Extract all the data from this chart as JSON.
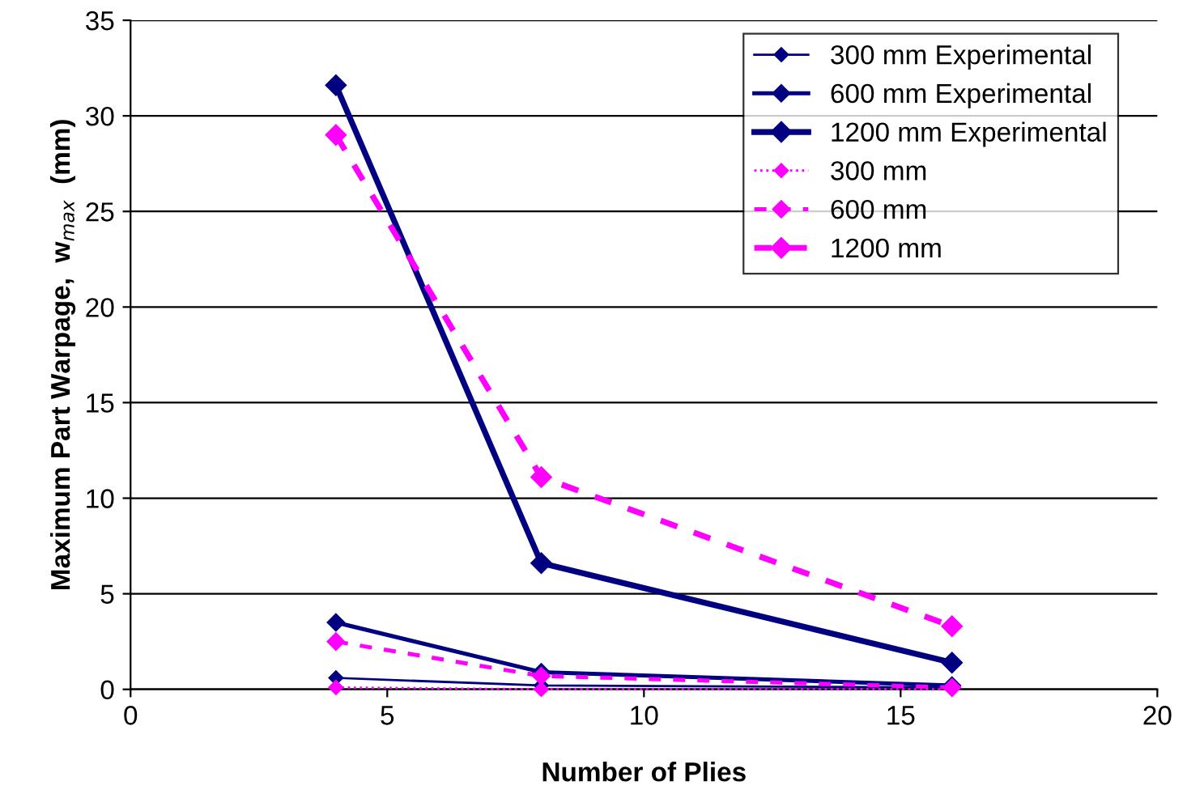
{
  "chart_data": {
    "type": "line",
    "xlabel": "Number of Plies",
    "ylabel": "Maximum Part Warpage,  w$_{max}$  (mm)",
    "x": [
      4,
      8,
      16
    ],
    "xlim": [
      0,
      20
    ],
    "xticks": [
      0,
      5,
      10,
      15,
      20
    ],
    "ylim": [
      0,
      35
    ],
    "yticks": [
      0,
      5,
      10,
      15,
      20,
      25,
      30,
      35
    ],
    "grid": "y",
    "legend": "top right",
    "marker": "diamond",
    "series": [
      {
        "name": "300 mm Experimental",
        "color": "#000080",
        "line_style": "solid",
        "values": [
          0.6,
          0.2,
          0.1
        ]
      },
      {
        "name": "600 mm Experimental",
        "color": "#000080",
        "line_style": "solid",
        "values": [
          3.5,
          0.9,
          0.2
        ]
      },
      {
        "name": "1200 mm Experimental",
        "color": "#000080",
        "line_style": "solid",
        "values": [
          31.6,
          6.6,
          1.4
        ]
      },
      {
        "name": "300 mm",
        "color": "#ff00ff",
        "line_style": "dotted",
        "values": [
          0.1,
          0.0,
          0.0
        ]
      },
      {
        "name": "600 mm",
        "color": "#ff00ff",
        "line_style": "dashed",
        "values": [
          2.5,
          0.7,
          0.1
        ]
      },
      {
        "name": "1200 mm",
        "color": "#ff00ff",
        "line_style": "dashed",
        "values": [
          29.0,
          11.1,
          3.3
        ]
      }
    ]
  }
}
